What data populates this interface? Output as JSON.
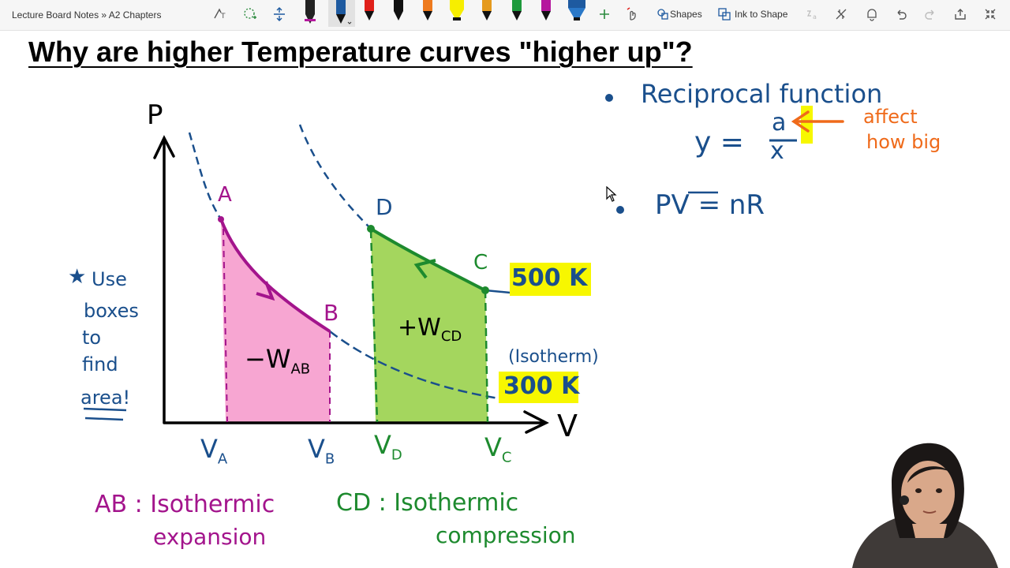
{
  "app": {
    "breadcrumb": "Lecture Board Notes » A2 Chapters"
  },
  "toolbar": {
    "shapes_label": "Shapes",
    "ink_to_shape_label": "Ink to Shape",
    "pens": [
      {
        "icon": "pen-icon",
        "color": "#222222"
      },
      {
        "icon": "pen-icon",
        "color": "#1e5aa0"
      },
      {
        "icon": "pen-icon",
        "color": "#e0201a"
      },
      {
        "icon": "pen-icon",
        "color": "#111111"
      },
      {
        "icon": "pen-icon",
        "color": "#ee7a1e"
      },
      {
        "icon": "highlighter-icon",
        "color": "#f7ee00"
      },
      {
        "icon": "pen-icon",
        "color": "#e59a1d"
      },
      {
        "icon": "pen-icon",
        "color": "#1d9a3c"
      },
      {
        "icon": "pen-icon",
        "color": "#b5179e"
      },
      {
        "icon": "pen-icon",
        "color": "#1e5aa0"
      }
    ]
  },
  "page": {
    "title": "Why are higher Temperature curves \"higher up\"?"
  },
  "ink": {
    "axis_p": "P",
    "axis_v": "V",
    "label_a": "A",
    "label_b": "B",
    "label_c": "C",
    "label_d": "D",
    "work_ab": "−W",
    "work_ab_sub": "AB",
    "work_cd": "+W",
    "work_cd_sub": "CD",
    "temp_high": "500 K",
    "temp_low": "300 K",
    "isotherm_note": "(Isotherm)",
    "va": "V",
    "va_sub": "A",
    "vb": "V",
    "vb_sub": "B",
    "vd": "V",
    "vd_sub": "D",
    "vc": "V",
    "vc_sub": "C",
    "note_lines": [
      "Use",
      "boxes",
      "to",
      "find",
      "area!"
    ],
    "note_star": "★",
    "ab_caption_1": "AB : Isothermic",
    "ab_caption_2": "expansion",
    "cd_caption_1": "CD : Isothermic",
    "cd_caption_2": "compression",
    "bullet_1": "Reciprocal function",
    "eq_lhs": "y =",
    "eq_num": "a",
    "eq_den": "x",
    "eq_note_1": "affect",
    "eq_note_2": "how big",
    "bullet_2": "PV = nR"
  },
  "colors": {
    "ink_blue": "#1a4f8c",
    "ink_purple": "#a3148c",
    "ink_green": "#1d8a2e",
    "ink_orange": "#ef6a1a",
    "fill_pink": "#f7a6d2",
    "fill_green": "#a4d65e",
    "highlight_yellow": "#f7f700"
  }
}
